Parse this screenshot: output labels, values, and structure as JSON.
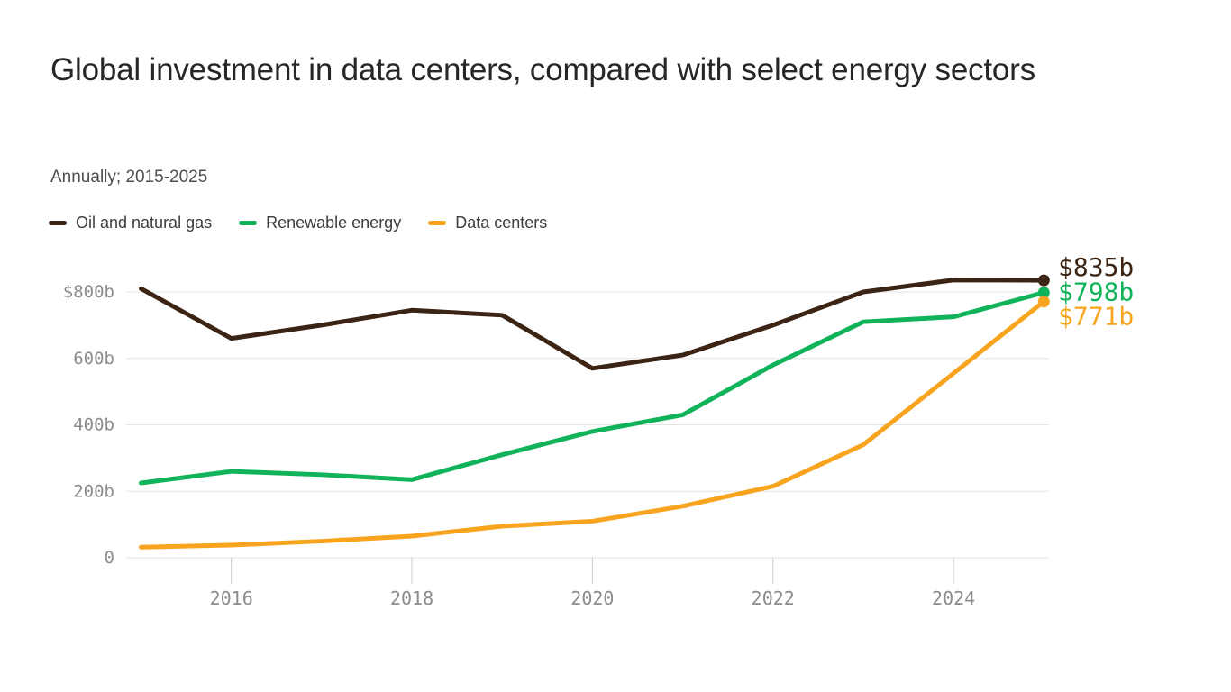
{
  "chart_data": {
    "type": "line",
    "title": "Global investment in data centers, compared with select energy sectors",
    "subtitle": "Annually; 2015-2025",
    "unit": "billions of US dollars",
    "x": [
      2015,
      2016,
      2017,
      2018,
      2019,
      2020,
      2021,
      2022,
      2023,
      2024,
      2025
    ],
    "series": [
      {
        "name": "Oil and natural gas",
        "color": "#3b2413",
        "values": [
          810,
          660,
          700,
          745,
          730,
          570,
          610,
          700,
          800,
          836,
          835
        ],
        "end_label": "$835b"
      },
      {
        "name": "Renewable energy",
        "color": "#10b359",
        "values": [
          225,
          260,
          250,
          235,
          310,
          380,
          430,
          580,
          710,
          725,
          798
        ],
        "end_label": "$798b"
      },
      {
        "name": "Data centers",
        "color": "#f8a41f",
        "values": [
          32,
          38,
          50,
          65,
          95,
          110,
          155,
          215,
          340,
          555,
          771
        ],
        "end_label": "$771b"
      }
    ],
    "y_ticks": [
      {
        "value": 800,
        "label": "$800b"
      },
      {
        "value": 600,
        "label": "600b"
      },
      {
        "value": 400,
        "label": "400b"
      },
      {
        "value": 200,
        "label": "200b"
      },
      {
        "value": 0,
        "label": "0"
      }
    ],
    "x_ticks": [
      {
        "value": 2016,
        "label": "2016"
      },
      {
        "value": 2018,
        "label": "2018"
      },
      {
        "value": 2020,
        "label": "2020"
      },
      {
        "value": 2022,
        "label": "2022"
      },
      {
        "value": 2024,
        "label": "2024"
      }
    ],
    "ylim": [
      0,
      870
    ],
    "grid": "horizontal",
    "legend_position": "top-left"
  },
  "style_colors": {
    "gridline": "#e3e3e3",
    "tick": "#cbcbcb",
    "axis_text": "#8c8c8c",
    "title_text": "#262626",
    "subtitle_text": "#4d4d4d",
    "legend_text": "#3d3d3d"
  }
}
